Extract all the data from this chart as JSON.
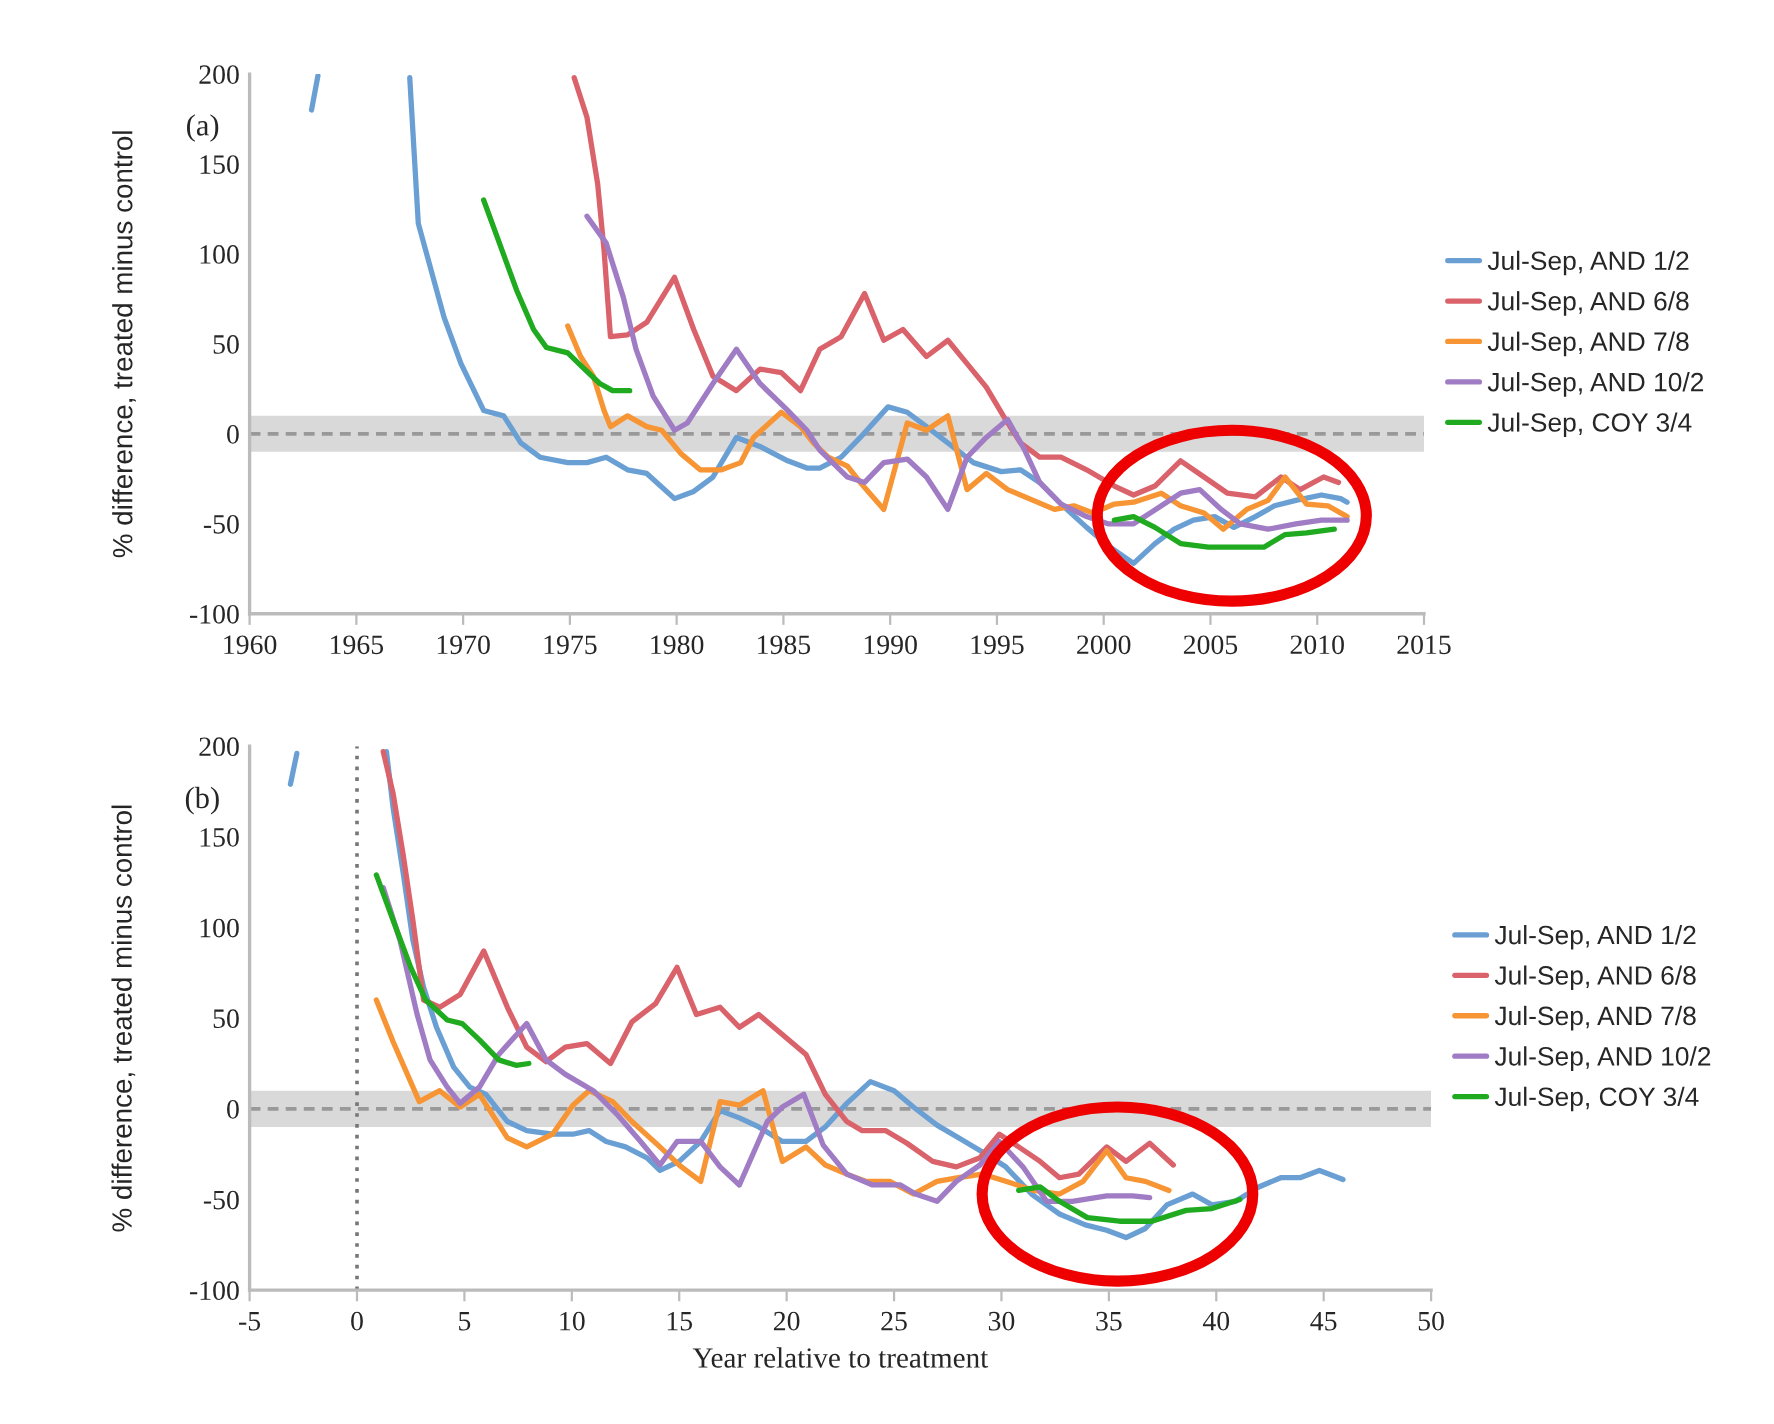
{
  "chart_data": [
    {
      "type": "line",
      "title": "(a)",
      "ylabel": "% difference, treated minus control",
      "xlim": [
        1960,
        2015
      ],
      "xticks": [
        1960,
        1965,
        1970,
        1975,
        1980,
        1985,
        1990,
        1995,
        2000,
        2005,
        2010,
        2015
      ],
      "ylim": [
        -100,
        200
      ],
      "yticks": [
        -100,
        -50,
        0,
        50,
        100,
        150,
        200
      ],
      "grid": false,
      "legend": "right",
      "marker": "none",
      "line_style": "solid",
      "bands": [
        {
          "axis": "y",
          "from": -10,
          "to": 10,
          "color": "#d9d9d9"
        }
      ],
      "ref_lines": [
        {
          "axis": "y",
          "value": 0,
          "color": "#999999",
          "line_style": "dashed"
        }
      ],
      "series": [
        {
          "name": "Jul-Sep, AND 1/2",
          "color": "#6a9fd4",
          "x": [
            1962.9,
            1963.2,
            1965,
            1967.5,
            1967.9,
            1968.5,
            1969.1,
            1969.9,
            1970.96,
            1971.9,
            1972.7,
            1973.6,
            1974.9,
            1975.8,
            1976.7,
            1977.7,
            1978.6,
            1979.9,
            1980.8,
            1981.7,
            1982.8,
            1983.9,
            1985.2,
            1986.1,
            1986.7,
            1987.7,
            1988.6,
            1989.9,
            1990.8,
            1991.7,
            1992.7,
            1993.9,
            1995.2,
            1996.1,
            1997.0,
            1998.0,
            1999.2,
            2000.3,
            2001.4,
            2002.4,
            2003.3,
            2004.2,
            2005.2,
            2006.1,
            2007.1,
            2008.0,
            2009.0,
            2010.2,
            2011.1,
            2011.4
          ],
          "values": [
            180,
            199,
            null,
            198,
            117,
            91,
            65,
            39,
            13,
            10,
            -5,
            -13,
            -16,
            -16,
            -13,
            -20,
            -22,
            -36,
            -32,
            -24,
            -2,
            -7,
            -15,
            -19,
            -19,
            -13,
            -2,
            15,
            12,
            4,
            -5,
            -16,
            -21,
            -20,
            -27,
            -39,
            -52,
            -63,
            -72,
            -61,
            -53,
            -48,
            -46,
            -52,
            -46,
            -40,
            -37,
            -34,
            -36,
            -38
          ]
        },
        {
          "name": "Jul-Sep, AND 6/8",
          "color": "#d9626b",
          "x": [
            1975.2,
            1975.8,
            1976.3,
            1976.6,
            1976.9,
            1977.7,
            1978.6,
            1979.9,
            1980.8,
            1981.7,
            1982.8,
            1983.9,
            1984.9,
            1985.8,
            1986.7,
            1987.7,
            1988.8,
            1989.7,
            1990.6,
            1991.7,
            1992.7,
            1993.6,
            1994.5,
            1995.3,
            1996.1,
            1997.0,
            1998.0,
            1999.2,
            2000.5,
            2001.4,
            2002.4,
            2003.6,
            2004.7,
            2005.8,
            2007.1,
            2008.3,
            2009.2,
            2010.3,
            2011.0
          ],
          "values": [
            198,
            176,
            139,
            102,
            54,
            55,
            62,
            87,
            58,
            32,
            24,
            36,
            34,
            24,
            47,
            54,
            78,
            52,
            58,
            43,
            52,
            39,
            26,
            10,
            -5,
            -13,
            -13,
            -20,
            -29,
            -34,
            -29,
            -15,
            -24,
            -33,
            -35,
            -24,
            -31,
            -24,
            -27
          ]
        },
        {
          "name": "Jul-Sep, AND 7/8",
          "color": "#f79433",
          "x": [
            1974.9,
            1975.5,
            1976.1,
            1976.6,
            1976.9,
            1977.7,
            1978.6,
            1979.3,
            1980.2,
            1981.1,
            1982.1,
            1983.0,
            1983.6,
            1984.9,
            1985.8,
            1986.4,
            1987.1,
            1988.0,
            1988.6,
            1989.7,
            1990.8,
            1991.7,
            1992.7,
            1993.6,
            1994.5,
            1995.5,
            1996.7,
            1997.7,
            1998.6,
            1999.5,
            2000.5,
            2001.4,
            2002.7,
            2003.6,
            2004.7,
            2005.6,
            2006.7,
            2007.7,
            2008.5,
            2009.5,
            2010.5,
            2011.4
          ],
          "values": [
            60,
            43,
            32,
            13,
            4,
            10,
            4,
            2,
            -11,
            -20,
            -20,
            -16,
            -2,
            12,
            4,
            -5,
            -13,
            -18,
            -27,
            -42,
            6,
            2,
            10,
            -31,
            -22,
            -31,
            -37,
            -42,
            -40,
            -44,
            -39,
            -38,
            -33,
            -40,
            -44,
            -53,
            -42,
            -37,
            -24,
            -39,
            -40,
            -46
          ]
        },
        {
          "name": "Jul-Sep, AND 10/2",
          "color": "#a07cc5",
          "x": [
            1975.8,
            1976.7,
            1977.5,
            1978.1,
            1978.9,
            1979.9,
            1980.5,
            1981.7,
            1982.8,
            1983.9,
            1985.2,
            1986.1,
            1986.7,
            1988.0,
            1988.8,
            1989.7,
            1990.8,
            1991.7,
            1992.7,
            1993.6,
            1994.5,
            1995.5,
            1996.3,
            1997.0,
            1998.0,
            1999.2,
            2000.2,
            2001.4,
            2002.7,
            2003.6,
            2004.5,
            2005.5,
            2006.4,
            2007.7,
            2009.0,
            2010.2,
            2011.4
          ],
          "values": [
            121,
            106,
            76,
            47,
            21,
            2,
            6,
            28,
            47,
            28,
            13,
            2,
            -9,
            -24,
            -27,
            -16,
            -14,
            -24,
            -42,
            -13,
            -2,
            8,
            -9,
            -27,
            -39,
            -46,
            -50,
            -50,
            -40,
            -33,
            -31,
            -42,
            -50,
            -53,
            -50,
            -48,
            -48
          ]
        },
        {
          "name": "Jul-Sep, COY 3/4",
          "color": "#1faa1f",
          "x": [
            1970.96,
            1971.7,
            1972.5,
            1973.3,
            1973.9,
            1974.9,
            1975.6,
            1976.4,
            1977.0,
            1977.8,
            1989,
            2000.5,
            2001.4,
            2002.4,
            2003.6,
            2004.9,
            2006.4,
            2007.5,
            2008.5,
            2009.5,
            2010.8
          ],
          "values": [
            130,
            106,
            80,
            58,
            48,
            45,
            37,
            28,
            24,
            24,
            null,
            -48,
            -46,
            -52,
            -61,
            -63,
            -63,
            -63,
            -56,
            -55,
            -53
          ]
        }
      ]
    },
    {
      "type": "line",
      "title": "(b)",
      "xlabel": "Year relative to treatment",
      "ylabel": "% difference, treated minus control",
      "xlim": [
        -5,
        50
      ],
      "xticks": [
        -5,
        0,
        5,
        10,
        15,
        20,
        25,
        30,
        35,
        40,
        45,
        50
      ],
      "ylim": [
        -100,
        200
      ],
      "yticks": [
        -100,
        -50,
        0,
        50,
        100,
        150,
        200
      ],
      "grid": false,
      "legend": "right",
      "marker": "none",
      "line_style": "solid",
      "bands": [
        {
          "axis": "y",
          "from": -10,
          "to": 10,
          "color": "#d9d9d9"
        }
      ],
      "ref_lines": [
        {
          "axis": "y",
          "value": 0,
          "color": "#999999",
          "line_style": "dashed"
        },
        {
          "axis": "x",
          "value": 0,
          "color": "#777777",
          "line_style": "dotted"
        }
      ],
      "series": [
        {
          "name": "Jul-Sep, AND 1/2",
          "color": "#6a9fd4",
          "x": [
            -3.1,
            -2.8,
            -1,
            1.37,
            1.68,
            2.15,
            2.6,
            3.1,
            3.7,
            4.5,
            5.25,
            6.0,
            7.0,
            7.9,
            9.1,
            10.05,
            10.8,
            11.6,
            12.5,
            13.5,
            14.1,
            15.0,
            16.0,
            16.9,
            17.8,
            18.7,
            19.8,
            20.9,
            21.8,
            22.8,
            23.9,
            25.0,
            25.9,
            27.0,
            28.0,
            29.0,
            30.2,
            31.4,
            32.7,
            33.9,
            34.9,
            35.8,
            36.7,
            37.7,
            38.9,
            39.8,
            40.9,
            42.0,
            43.0,
            43.9,
            44.8,
            45.9
          ],
          "values": [
            179,
            196,
            null,
            197,
            166,
            130,
            93,
            67,
            45,
            23,
            12,
            8,
            -7,
            -12,
            -14,
            -14,
            -12,
            -18,
            -21,
            -27,
            -34,
            -29,
            -18,
            -1,
            -5,
            -10,
            -18,
            -18,
            -10,
            3,
            15,
            10,
            1,
            -9,
            -16,
            -23,
            -32,
            -47,
            -58,
            -64,
            -67,
            -71,
            -66,
            -53,
            -47,
            -53,
            -51,
            -43,
            -38,
            -38,
            -34,
            -39
          ]
        },
        {
          "name": "Jul-Sep, AND 6/8",
          "color": "#d9626b",
          "x": [
            1.22,
            1.68,
            2.15,
            2.6,
            3.1,
            3.85,
            4.8,
            5.9,
            7.0,
            7.9,
            8.8,
            9.7,
            10.7,
            11.8,
            12.8,
            13.9,
            14.9,
            15.8,
            16.9,
            17.8,
            18.7,
            19.8,
            20.9,
            21.8,
            22.8,
            23.5,
            24.6,
            25.6,
            26.8,
            27.9,
            29.0,
            29.9,
            30.8,
            31.8,
            32.7,
            33.6,
            34.9,
            35.8,
            36.9,
            38.0
          ],
          "values": [
            197,
            174,
            140,
            104,
            60,
            56,
            63,
            87,
            56,
            34,
            26,
            34,
            36,
            25,
            48,
            58,
            78,
            52,
            56,
            45,
            52,
            41,
            30,
            8,
            -7,
            -12,
            -12,
            -19,
            -29,
            -32,
            -27,
            -14,
            -21,
            -29,
            -38,
            -36,
            -21,
            -29,
            -19,
            -31
          ]
        },
        {
          "name": "Jul-Sep, AND 7/8",
          "color": "#f79433",
          "x": [
            0.9,
            1.68,
            2.9,
            3.85,
            4.8,
            5.7,
            7.0,
            7.9,
            9.1,
            10.05,
            10.8,
            11.9,
            12.8,
            14.1,
            15.0,
            16.0,
            16.9,
            17.8,
            18.9,
            19.8,
            20.9,
            21.8,
            22.8,
            23.7,
            24.8,
            25.9,
            27.0,
            28.0,
            29.1,
            30.2,
            31.5,
            32.7,
            33.8,
            34.9,
            35.8,
            36.7,
            37.8
          ],
          "values": [
            60,
            37,
            4,
            10,
            1,
            8,
            -16,
            -21,
            -14,
            2,
            10,
            4,
            -7,
            -21,
            -31,
            -40,
            4,
            2,
            10,
            -29,
            -21,
            -31,
            -36,
            -40,
            -40,
            -47,
            -40,
            -38,
            -36,
            -40,
            -45,
            -47,
            -40,
            -23,
            -38,
            -40,
            -45
          ]
        },
        {
          "name": "Jul-Sep, AND 10/2",
          "color": "#a07cc5",
          "x": [
            1.22,
            2.0,
            2.8,
            3.4,
            4.2,
            4.8,
            5.7,
            6.6,
            7.9,
            8.8,
            9.7,
            11.0,
            12.1,
            13.2,
            14.1,
            14.9,
            16.0,
            16.9,
            17.8,
            19.1,
            19.8,
            20.8,
            21.7,
            22.8,
            24.0,
            25.3,
            26.0,
            27.0,
            27.9,
            29.0,
            29.9,
            31.0,
            32.1,
            33.3,
            34.9,
            36.1,
            36.9
          ],
          "values": [
            122,
            93,
            52,
            27,
            12,
            3,
            12,
            30,
            47,
            27,
            19,
            10,
            -3,
            -18,
            -31,
            -18,
            -18,
            -32,
            -42,
            -7,
            1,
            8,
            -20,
            -36,
            -42,
            -42,
            -47,
            -51,
            -40,
            -31,
            -18,
            -32,
            -51,
            -51,
            -48,
            -48,
            -49
          ]
        },
        {
          "name": "Jul-Sep, COY 3/4",
          "color": "#1faa1f",
          "x": [
            0.9,
            1.68,
            2.5,
            3.2,
            4.2,
            4.9,
            5.7,
            6.6,
            7.4,
            8.0,
            20,
            30.8,
            31.8,
            32.7,
            34.0,
            35.5,
            37.0,
            38.6,
            39.8,
            41.1
          ],
          "values": [
            129,
            104,
            78,
            60,
            49,
            47,
            38,
            27,
            24,
            25,
            null,
            -45,
            -43,
            -51,
            -60,
            -62,
            -62,
            -56,
            -55,
            -50
          ]
        }
      ]
    }
  ]
}
